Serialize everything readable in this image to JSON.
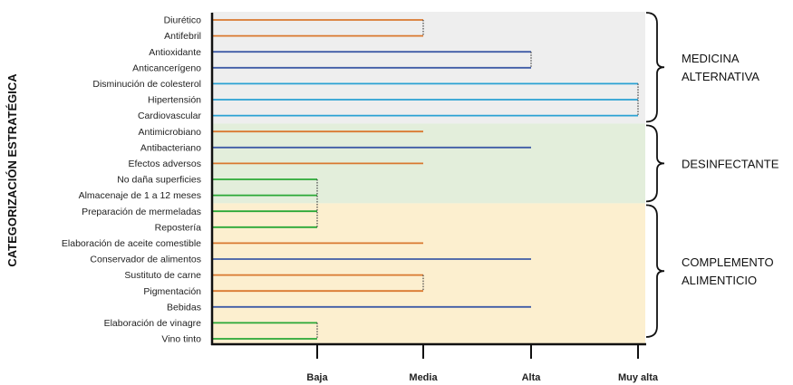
{
  "chart_data": {
    "type": "bar",
    "ylabel": "CATEGORIZACIÓN ESTRATÉGICA",
    "x_ticks": [
      "Baja",
      "Media",
      "Alta",
      "Muy alta"
    ],
    "categories": [
      "Diurético",
      "Antifebril",
      "Antioxidante",
      "Anticancerígeno",
      "Disminución de colesterol",
      "Hipertensión",
      "Cardiovascular",
      "Antimicrobiano",
      "Antibacteriano",
      "Efectos adversos",
      "No daña superficies",
      "Almacenaje de 1 a 12 meses",
      "Preparación de mermeladas",
      "Repostería",
      "Elaboración de aceite comestible",
      "Conservador de alimentos",
      "Sustituto de carne",
      "Pigmentación",
      "Bebidas",
      "Elaboración de vinagre",
      "Vino tinto"
    ],
    "values": [
      "Media",
      "Media",
      "Alta",
      "Alta",
      "Muy alta",
      "Muy alta",
      "Muy alta",
      "Media",
      "Alta",
      "Media",
      "Baja",
      "Baja",
      "Baja",
      "Baja",
      "Media",
      "Alta",
      "Media",
      "Media",
      "Alta",
      "Baja",
      "Baja"
    ],
    "level_colors": {
      "Baja": "#2aa836",
      "Media": "#d9782f",
      "Alta": "#3f5ba6",
      "Muy alta": "#2aa1d3"
    },
    "groups": [
      {
        "label_lines": [
          "MEDICINA",
          "ALTERNATIVA"
        ],
        "first": 0,
        "last": 6,
        "color": "#eeeeee"
      },
      {
        "label_lines": [
          "DESINFECTANTE"
        ],
        "first": 7,
        "last": 11,
        "color": "#e3eedb"
      },
      {
        "label_lines": [
          "COMPLEMENTO",
          "ALIMENTICIO"
        ],
        "first": 12,
        "last": 20,
        "color": "#fcefcf"
      }
    ]
  }
}
